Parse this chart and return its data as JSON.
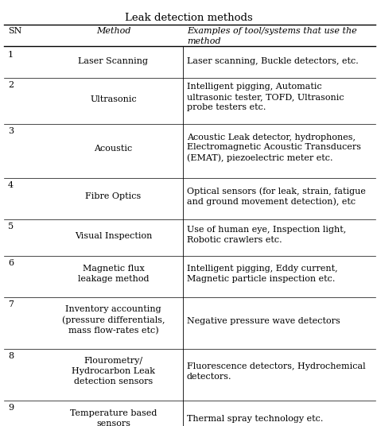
{
  "title": "Leak detection methods",
  "rows": [
    {
      "sn": "1",
      "method": "Laser Scanning",
      "examples": "Laser scanning, Buckle detectors, etc."
    },
    {
      "sn": "2",
      "method": "Ultrasonic",
      "examples": "Intelligent pigging, Automatic\nultrasonic tester, TOFD, Ultrasonic\nprobe testers etc."
    },
    {
      "sn": "3",
      "method": "Acoustic",
      "examples": "Acoustic Leak detector, hydrophones,\nElectromagnetic Acoustic Transducers\n(EMAT), piezoelectric meter etc."
    },
    {
      "sn": "4",
      "method": "Fibre Optics",
      "examples": "Optical sensors (for leak, strain, fatigue\nand ground movement detection), etc"
    },
    {
      "sn": "5",
      "method": "Visual Inspection",
      "examples": "Use of human eye, Inspection light,\nRobotic crawlers etc."
    },
    {
      "sn": "6",
      "method": "Magnetic flux\nleakage method",
      "examples": "Intelligent pigging, Eddy current,\nMagnetic particle inspection etc."
    },
    {
      "sn": "7",
      "method": "Inventory accounting\n(pressure differentials,\nmass flow-rates etc)",
      "examples": "Negative pressure wave detectors"
    },
    {
      "sn": "8",
      "method": "Flourometry/\nHydrocarbon Leak\ndetection sensors",
      "examples": "Fluorescence detectors, Hydrochemical\ndetectors."
    },
    {
      "sn": "9",
      "method": "Temperature based\nsensors",
      "examples": "Thermal spray technology etc."
    }
  ],
  "bg_color": "#ffffff",
  "text_color": "#000000",
  "fontsize": 8.0,
  "title_fontsize": 9.5,
  "header_fontsize": 8.0
}
